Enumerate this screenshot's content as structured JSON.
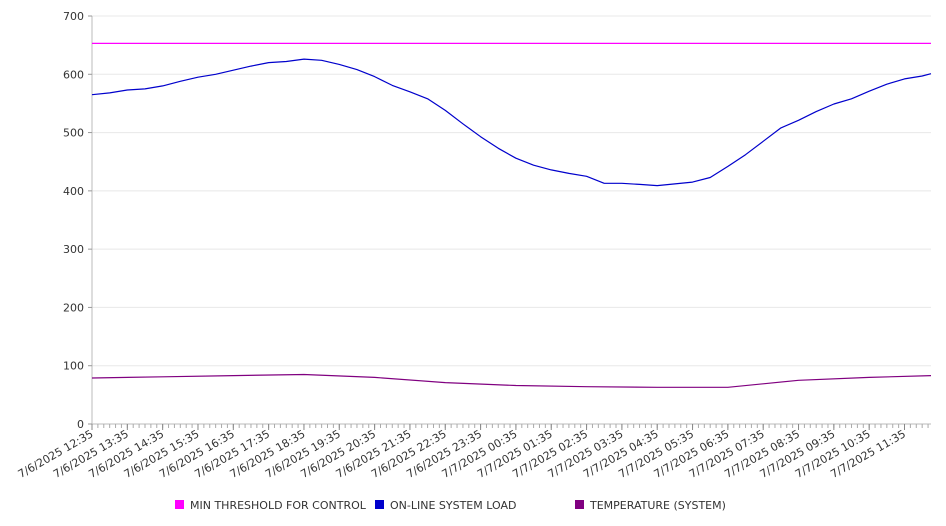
{
  "chart_data": {
    "type": "line",
    "title": "",
    "xlabel": "",
    "ylabel": "",
    "ylim": [
      0,
      700
    ],
    "y_ticks": [
      0,
      100,
      200,
      300,
      400,
      500,
      600,
      700
    ],
    "grid": true,
    "legend_position": "bottom",
    "x_tick_labels": [
      "7/6/2025 12:35",
      "7/6/2025 13:35",
      "7/6/2025 14:35",
      "7/6/2025 15:35",
      "7/6/2025 16:35",
      "7/6/2025 17:35",
      "7/6/2025 18:35",
      "7/6/2025 19:35",
      "7/6/2025 20:35",
      "7/6/2025 21:35",
      "7/6/2025 22:35",
      "7/6/2025 23:35",
      "7/7/2025 00:35",
      "7/7/2025 01:35",
      "7/7/2025 02:35",
      "7/7/2025 03:35",
      "7/7/2025 04:35",
      "7/7/2025 05:35",
      "7/7/2025 06:35",
      "7/7/2025 07:35",
      "7/7/2025 08:35",
      "7/7/2025 09:35",
      "7/7/2025 10:35",
      "7/7/2025 11:35"
    ],
    "series": [
      {
        "name": "MIN THRESHOLD FOR CONTROL",
        "color": "#ff00ff",
        "x": [
          "7/6/2025 12:35",
          "7/7/2025 12:20"
        ],
        "values": [
          653,
          653
        ]
      },
      {
        "name": "ON-LINE SYSTEM LOAD",
        "color": "#0000cc",
        "x": [
          "7/6/2025 12:35",
          "7/6/2025 13:05",
          "7/6/2025 13:35",
          "7/6/2025 14:05",
          "7/6/2025 14:35",
          "7/6/2025 15:05",
          "7/6/2025 15:35",
          "7/6/2025 16:05",
          "7/6/2025 16:35",
          "7/6/2025 17:05",
          "7/6/2025 17:35",
          "7/6/2025 18:05",
          "7/6/2025 18:35",
          "7/6/2025 19:05",
          "7/6/2025 19:35",
          "7/6/2025 20:05",
          "7/6/2025 20:35",
          "7/6/2025 21:05",
          "7/6/2025 21:35",
          "7/6/2025 22:05",
          "7/6/2025 22:35",
          "7/6/2025 23:05",
          "7/6/2025 23:35",
          "7/7/2025 00:05",
          "7/7/2025 00:35",
          "7/7/2025 01:05",
          "7/7/2025 01:35",
          "7/7/2025 02:05",
          "7/7/2025 02:35",
          "7/7/2025 03:05",
          "7/7/2025 03:35",
          "7/7/2025 04:05",
          "7/7/2025 04:35",
          "7/7/2025 05:05",
          "7/7/2025 05:35",
          "7/7/2025 06:05",
          "7/7/2025 06:35",
          "7/7/2025 07:05",
          "7/7/2025 07:35",
          "7/7/2025 08:05",
          "7/7/2025 08:35",
          "7/7/2025 09:05",
          "7/7/2025 09:35",
          "7/7/2025 10:05",
          "7/7/2025 10:35",
          "7/7/2025 11:05",
          "7/7/2025 11:35",
          "7/7/2025 12:05",
          "7/7/2025 12:20"
        ],
        "values": [
          565,
          568,
          573,
          575,
          580,
          588,
          595,
          600,
          607,
          614,
          620,
          622,
          626,
          624,
          617,
          608,
          596,
          581,
          570,
          558,
          538,
          515,
          493,
          473,
          456,
          444,
          436,
          430,
          425,
          413,
          413,
          411,
          409,
          412,
          415,
          423,
          442,
          462,
          485,
          508,
          521,
          536,
          549,
          558,
          571,
          583,
          592,
          597,
          601
        ]
      },
      {
        "name": "TEMPERATURE (SYSTEM)",
        "color": "#800080",
        "x": [
          "7/6/2025 12:35",
          "7/6/2025 14:35",
          "7/6/2025 16:35",
          "7/6/2025 18:35",
          "7/6/2025 20:35",
          "7/6/2025 22:35",
          "7/7/2025 00:35",
          "7/7/2025 02:35",
          "7/7/2025 04:35",
          "7/7/2025 06:35",
          "7/7/2025 08:35",
          "7/7/2025 10:35",
          "7/7/2025 12:20"
        ],
        "values": [
          79,
          81,
          83,
          85,
          80,
          71,
          66,
          64,
          63,
          63,
          75,
          80,
          83
        ]
      }
    ]
  }
}
